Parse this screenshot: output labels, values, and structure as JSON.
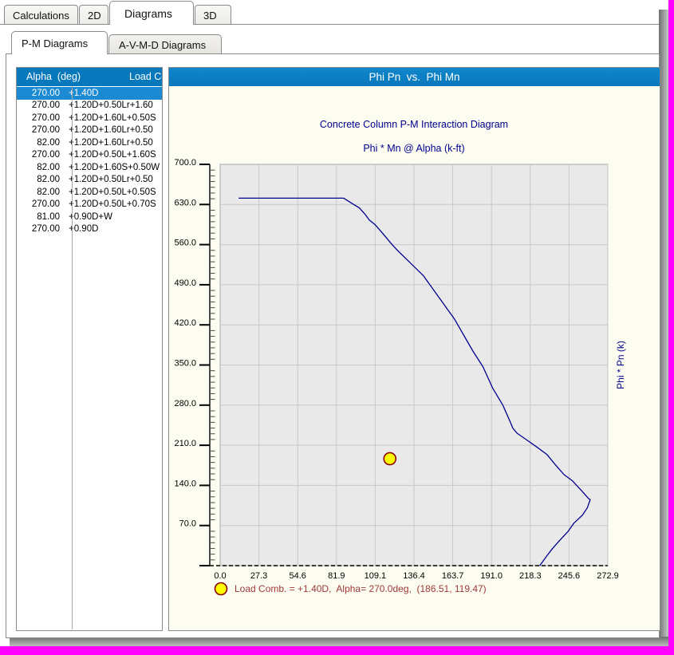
{
  "colors": {
    "accent_blue": "#0878BC",
    "selected_row_blue": "#1B8AD2",
    "navy": "#000090",
    "legend_maroon": "#A03A3A",
    "ivory_bg": "#FCFCF1",
    "plot_bg": "#E9E9E9",
    "grid": "#C8C8C8",
    "frame_magenta": "#FF00FF"
  },
  "tabs": {
    "items": [
      "Calculations",
      "2D",
      "Diagrams",
      "3D"
    ],
    "active": "Diagrams"
  },
  "subtabs": {
    "items": [
      "P-M Diagrams",
      "A-V-M-D Diagrams"
    ],
    "active": "P-M Diagrams"
  },
  "table": {
    "headers": [
      "Alpha  (deg)",
      "Load Co"
    ],
    "selected_index": 0,
    "rows": [
      {
        "alpha": "270.00",
        "combo": "+1.40D"
      },
      {
        "alpha": "270.00",
        "combo": "+1.20D+0.50Lr+1.60"
      },
      {
        "alpha": "270.00",
        "combo": "+1.20D+1.60L+0.50S"
      },
      {
        "alpha": "270.00",
        "combo": "+1.20D+1.60Lr+0.50"
      },
      {
        "alpha": "82.00",
        "combo": "+1.20D+1.60Lr+0.50"
      },
      {
        "alpha": "270.00",
        "combo": "+1.20D+0.50L+1.60S"
      },
      {
        "alpha": "82.00",
        "combo": "+1.20D+1.60S+0.50W"
      },
      {
        "alpha": "82.00",
        "combo": "+1.20D+0.50Lr+0.50"
      },
      {
        "alpha": "82.00",
        "combo": "+1.20D+0.50L+0.50S"
      },
      {
        "alpha": "270.00",
        "combo": "+1.20D+0.50L+0.70S"
      },
      {
        "alpha": "81.00",
        "combo": "+0.90D+W"
      },
      {
        "alpha": "270.00",
        "combo": "+0.90D"
      }
    ]
  },
  "chart_panel": {
    "titlebar": "Phi Pn  vs.  Phi Mn"
  },
  "chart_data": {
    "type": "line",
    "title": "Concrete Column P-M Interaction Diagram",
    "subtitle": "Phi * Mn @ Alpha   (k-ft)",
    "ylabel_right": "Phi * Pn  (k)",
    "xlabel": "Phi * Mn @ Alpha   (k-ft)",
    "ylabel": "Phi * Pn  (k)",
    "xlim": [
      0,
      272.9
    ],
    "ylim": [
      0,
      700
    ],
    "x_tick_labels": [
      "0.0",
      "27.3",
      "54.6",
      "81.9",
      "109.1",
      "136.4",
      "163.7",
      "191.0",
      "218.3",
      "245.6",
      "272.9"
    ],
    "y_tick_labels": [
      "70.0",
      "140.0",
      "210.0",
      "280.0",
      "350.0",
      "420.0",
      "490.0",
      "560.0",
      "630.0",
      "700.0"
    ],
    "y_major_step": 70,
    "y_minor_step": 10,
    "grid": true,
    "series": [
      {
        "name": "phi-pm-capacity-envelope",
        "color": "#000090",
        "points": [
          [
            13,
            641
          ],
          [
            87,
            641
          ],
          [
            94,
            630
          ],
          [
            98,
            624
          ],
          [
            102,
            613
          ],
          [
            105,
            603
          ],
          [
            109,
            595
          ],
          [
            115,
            578
          ],
          [
            120,
            563
          ],
          [
            124,
            552
          ],
          [
            143,
            506
          ],
          [
            165,
            430
          ],
          [
            178,
            374
          ],
          [
            185,
            347
          ],
          [
            192,
            309
          ],
          [
            199,
            280
          ],
          [
            204,
            252
          ],
          [
            206,
            240
          ],
          [
            209,
            231
          ],
          [
            216,
            219
          ],
          [
            224,
            205
          ],
          [
            230,
            194
          ],
          [
            236,
            176
          ],
          [
            242,
            159
          ],
          [
            248,
            148
          ],
          [
            254,
            132
          ],
          [
            259,
            118
          ],
          [
            260.5,
            115
          ],
          [
            258.5,
            101
          ],
          [
            255,
            88
          ],
          [
            249,
            74
          ],
          [
            245,
            60
          ],
          [
            239,
            44
          ],
          [
            234,
            30
          ],
          [
            230,
            17
          ],
          [
            225,
            0
          ]
        ]
      }
    ],
    "marker": {
      "plotted_at": [
        119.47,
        186.51
      ],
      "fill": "#FFFF00",
      "stroke": "#8B0000",
      "legend_label": "Load Comb. = +1.40D,  Alpha= 270.0deg,  (186.51, 119.47)"
    },
    "legend_position": "below-x-axis-left"
  }
}
